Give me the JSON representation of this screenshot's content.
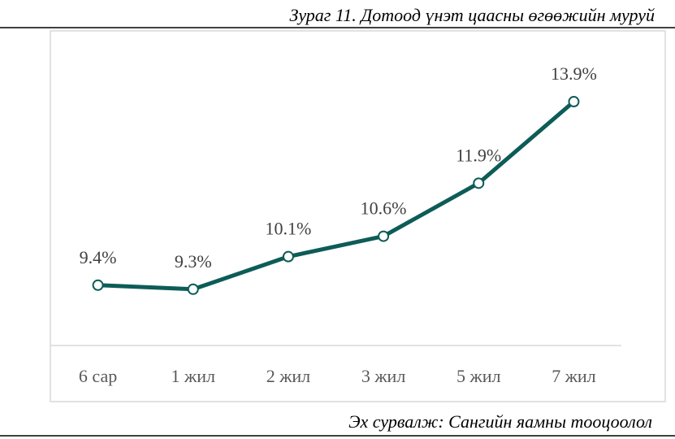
{
  "chart_data": {
    "type": "line",
    "title": "Зураг 11. Дотоод үнэт цаасны өгөөжийн муруй",
    "categories": [
      "6 сар",
      "1 жил",
      "2 жил",
      "3 жил",
      "5 жил",
      "7 жил"
    ],
    "values": [
      9.4,
      9.3,
      10.1,
      10.6,
      11.9,
      13.9
    ],
    "value_labels": [
      "9.4%",
      "9.3%",
      "10.1%",
      "10.6%",
      "11.9%",
      "13.9%"
    ],
    "color": "#0d5c57",
    "ylim": [
      8,
      14
    ],
    "source": "Эх сурвалж: Сангийн яамны тооцоолол"
  }
}
